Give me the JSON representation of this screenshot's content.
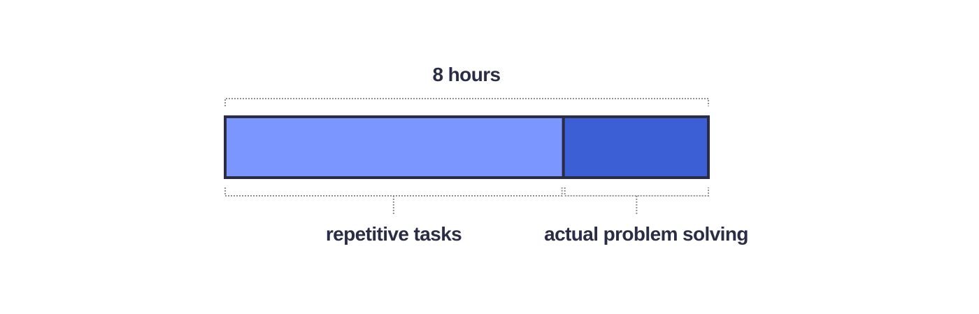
{
  "total_label": "8 hours",
  "segments": [
    {
      "label": "repetitive tasks",
      "fraction": 0.7,
      "color": "#7b96ff"
    },
    {
      "label": "actual problem solving",
      "fraction": 0.3,
      "color": "#3c5fd6"
    }
  ],
  "colors": {
    "outline": "#2a2d45",
    "text": "#2a2d45",
    "bracket": "#8f8f8f"
  }
}
